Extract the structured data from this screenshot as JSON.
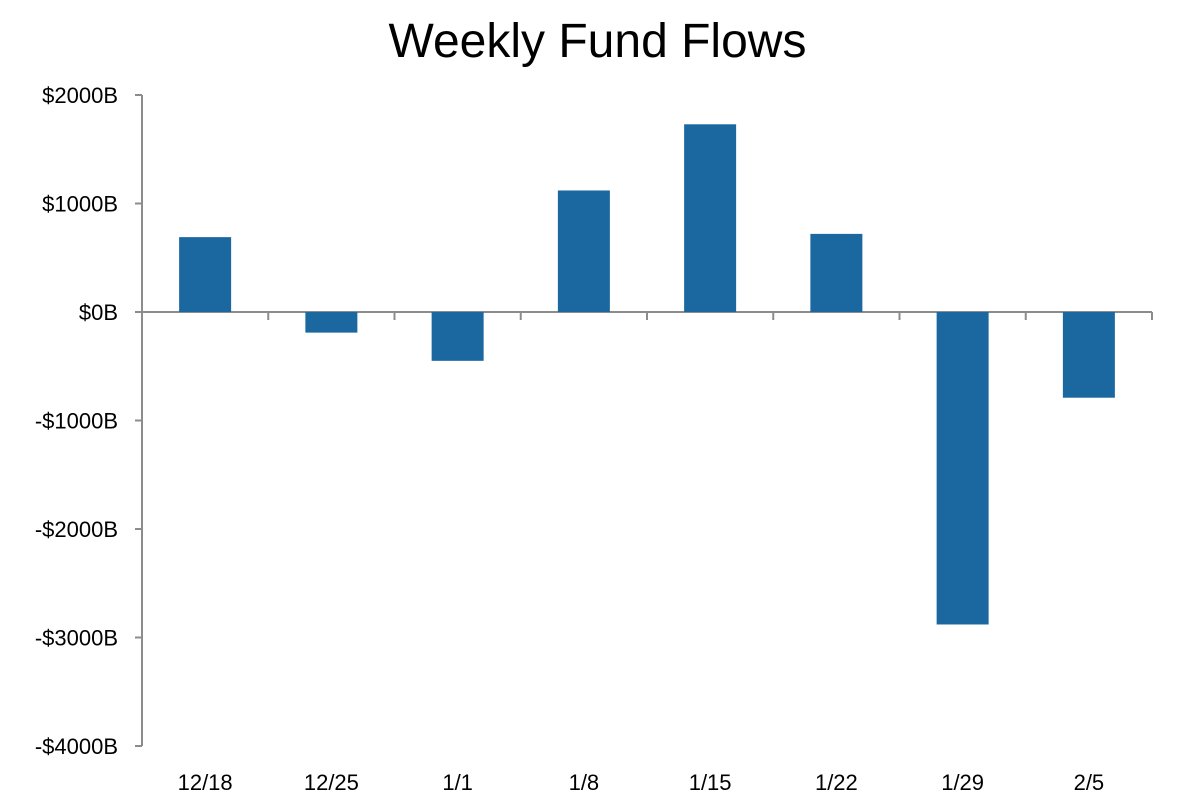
{
  "chart_data": {
    "type": "bar",
    "title": "Weekly Fund Flows",
    "xlabel": "",
    "ylabel": "",
    "categories": [
      "12/18",
      "12/25",
      "1/1",
      "1/8",
      "1/15",
      "1/22",
      "1/29",
      "2/5"
    ],
    "values": [
      690,
      -190,
      -450,
      1120,
      1730,
      720,
      -2880,
      -790
    ],
    "ylim": [
      -4000,
      2000
    ],
    "yticks": [
      2000,
      1000,
      0,
      -1000,
      -2000,
      -3000,
      -4000
    ],
    "ytick_labels": [
      "$2000B",
      "$1000B",
      "$0B",
      "-$1000B",
      "-$2000B",
      "-$3000B",
      "-$4000B"
    ],
    "grid": false,
    "legend": "none",
    "colors": {
      "bar": "#1b67a0",
      "axis": "#8c8c8c",
      "text": "#000000"
    }
  }
}
